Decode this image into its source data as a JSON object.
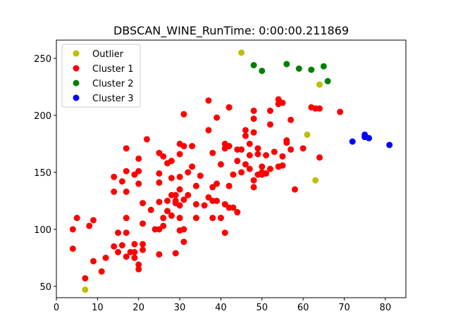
{
  "chart_data": {
    "type": "scatter",
    "title": "DBSCAN_WINE_RunTime: 0:00:00.211869",
    "xlabel": "",
    "ylabel": "",
    "xlim": [
      0,
      85
    ],
    "ylim": [
      40,
      266
    ],
    "x_ticks": [
      0,
      10,
      20,
      30,
      40,
      50,
      60,
      70,
      80
    ],
    "y_ticks": [
      50,
      100,
      150,
      200,
      250
    ],
    "grid": false,
    "legend_position": "top-left",
    "series": [
      {
        "name": "Outlier",
        "color": "#bfbf00",
        "points": [
          [
            45,
            255
          ],
          [
            64,
            227
          ],
          [
            61,
            183
          ],
          [
            63,
            143
          ],
          [
            7,
            47
          ]
        ]
      },
      {
        "name": "Cluster 1",
        "color": "#ff0000",
        "points": [
          [
            4,
            83
          ],
          [
            4,
            100
          ],
          [
            5,
            110
          ],
          [
            7,
            57
          ],
          [
            8,
            103
          ],
          [
            9,
            108
          ],
          [
            9,
            72
          ],
          [
            11,
            63
          ],
          [
            12,
            75
          ],
          [
            14,
            146
          ],
          [
            14,
            133
          ],
          [
            14,
            85
          ],
          [
            15,
            97
          ],
          [
            15,
            80
          ],
          [
            16,
            86
          ],
          [
            16,
            142
          ],
          [
            17,
            171
          ],
          [
            17,
            151
          ],
          [
            17,
            133
          ],
          [
            17,
            110
          ],
          [
            17,
            97
          ],
          [
            17,
            76
          ],
          [
            18,
            80
          ],
          [
            19,
            148
          ],
          [
            19,
            87
          ],
          [
            19,
            75
          ],
          [
            19,
            80
          ],
          [
            20,
            162
          ],
          [
            20,
            151
          ],
          [
            20,
            140
          ],
          [
            20,
            69
          ],
          [
            20,
            65
          ],
          [
            21,
            123
          ],
          [
            21,
            105
          ],
          [
            21,
            87
          ],
          [
            21,
            82
          ],
          [
            22,
            179
          ],
          [
            23,
            117
          ],
          [
            24,
            100
          ],
          [
            25,
            167
          ],
          [
            25,
            149
          ],
          [
            25,
            141
          ],
          [
            25,
            124
          ],
          [
            25,
            100
          ],
          [
            25,
            78
          ],
          [
            26,
            164
          ],
          [
            26,
            110
          ],
          [
            26,
            103
          ],
          [
            27,
            158
          ],
          [
            27,
            125
          ],
          [
            27,
            116
          ],
          [
            28,
            160
          ],
          [
            28,
            145
          ],
          [
            28,
            130
          ],
          [
            28,
            112
          ],
          [
            29,
            123
          ],
          [
            29,
            125
          ],
          [
            29,
            130
          ],
          [
            29,
            79
          ],
          [
            30,
            175
          ],
          [
            30,
            166
          ],
          [
            30,
            146
          ],
          [
            30,
            135
          ],
          [
            30,
            121
          ],
          [
            30,
            110
          ],
          [
            30,
            99
          ],
          [
            31,
            201
          ],
          [
            31,
            173
          ],
          [
            31,
            126
          ],
          [
            31,
            100
          ],
          [
            31,
            89
          ],
          [
            32,
            150
          ],
          [
            32,
            130
          ],
          [
            33,
            173
          ],
          [
            33,
            155
          ],
          [
            34,
            138
          ],
          [
            34,
            122
          ],
          [
            34,
            110
          ],
          [
            35,
            147
          ],
          [
            36,
            121
          ],
          [
            37,
            213
          ],
          [
            37,
            187
          ],
          [
            37,
            128
          ],
          [
            38,
            167
          ],
          [
            38,
            137
          ],
          [
            38,
            110
          ],
          [
            38,
            125
          ],
          [
            39,
            198
          ],
          [
            39,
            140
          ],
          [
            39,
            125
          ],
          [
            40,
            157
          ],
          [
            40,
            110
          ],
          [
            41,
            175
          ],
          [
            41,
            171
          ],
          [
            41,
            122
          ],
          [
            41,
            97
          ],
          [
            42,
            207
          ],
          [
            42,
            173
          ],
          [
            42,
            138
          ],
          [
            42,
            119
          ],
          [
            43,
            148
          ],
          [
            43,
            119
          ],
          [
            44,
            170
          ],
          [
            44,
            160
          ],
          [
            44,
            115
          ],
          [
            45,
            170
          ],
          [
            45,
            150
          ],
          [
            46,
            187
          ],
          [
            46,
            182
          ],
          [
            46,
            157
          ],
          [
            47,
            175
          ],
          [
            47,
            165
          ],
          [
            47,
            153
          ],
          [
            48,
            204
          ],
          [
            48,
            197
          ],
          [
            48,
            185
          ],
          [
            48,
            143
          ],
          [
            48,
            137
          ],
          [
            49,
            171
          ],
          [
            49,
            166
          ],
          [
            49,
            148
          ],
          [
            50,
            155
          ],
          [
            50,
            150
          ],
          [
            50,
            148
          ],
          [
            51,
            165
          ],
          [
            51,
            149
          ],
          [
            52,
            204
          ],
          [
            52,
            192
          ],
          [
            52,
            153
          ],
          [
            53,
            168
          ],
          [
            54,
            214
          ],
          [
            54,
            210
          ],
          [
            54,
            155
          ],
          [
            55,
            211
          ],
          [
            55,
            164
          ],
          [
            55,
            156
          ],
          [
            56,
            178
          ],
          [
            56,
            176
          ],
          [
            57,
            196
          ],
          [
            57,
            170
          ],
          [
            58,
            135
          ],
          [
            60,
            171
          ],
          [
            62,
            207
          ],
          [
            63,
            206
          ],
          [
            64,
            206
          ],
          [
            64,
            163
          ],
          [
            69,
            203
          ]
        ]
      },
      {
        "name": "Cluster 2",
        "color": "#008000",
        "points": [
          [
            48,
            244
          ],
          [
            50,
            239
          ],
          [
            56,
            245
          ],
          [
            59,
            241
          ],
          [
            62,
            240
          ],
          [
            65,
            243
          ],
          [
            66,
            230
          ]
        ]
      },
      {
        "name": "Cluster 3",
        "color": "#0000ff",
        "points": [
          [
            72,
            177
          ],
          [
            75,
            181
          ],
          [
            75,
            183
          ],
          [
            76,
            180
          ],
          [
            81,
            174
          ]
        ]
      }
    ]
  }
}
